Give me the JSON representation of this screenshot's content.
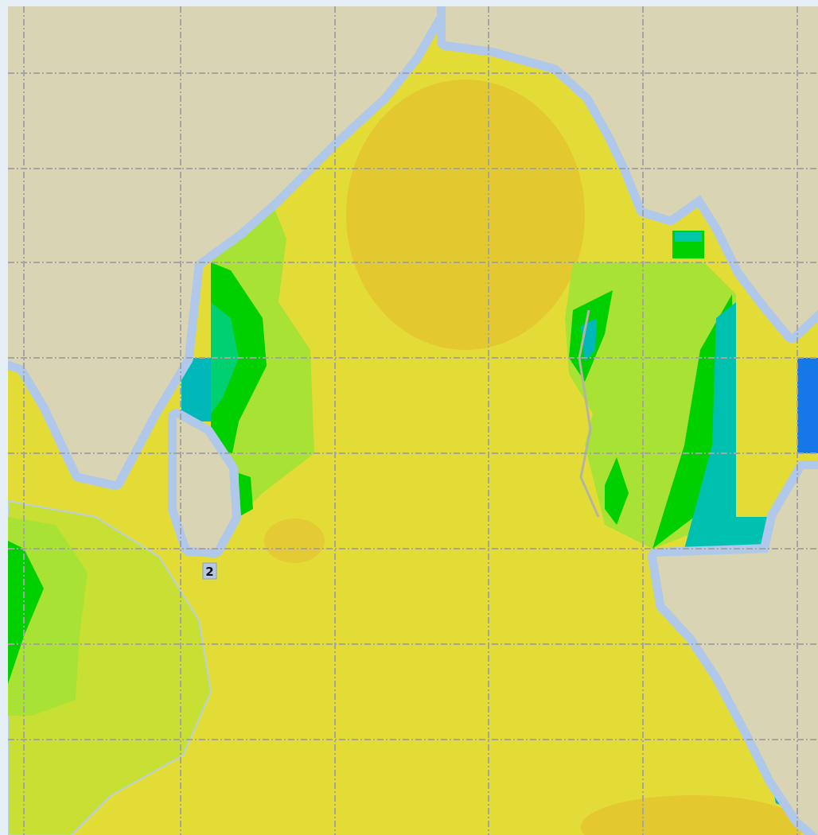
{
  "map": {
    "markers": [
      {
        "label": "2"
      }
    ]
  }
}
